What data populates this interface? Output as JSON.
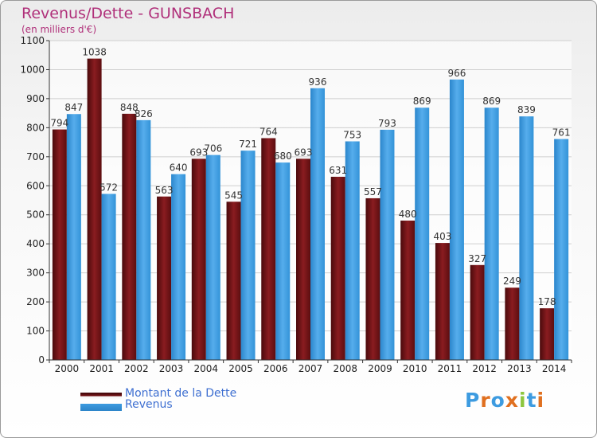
{
  "chart_data": {
    "type": "bar",
    "title": "Revenus/Dette - GUNSBACH",
    "subtitle": "(en milliers d'€)",
    "categories": [
      "2000",
      "2001",
      "2002",
      "2003",
      "2004",
      "2005",
      "2006",
      "2007",
      "2008",
      "2009",
      "2010",
      "2011",
      "2012",
      "2013",
      "2014"
    ],
    "series": [
      {
        "name": "Montant de la Dette",
        "values": [
          794,
          1038,
          848,
          563,
          693,
          545,
          764,
          693,
          631,
          557,
          480,
          403,
          327,
          249,
          178
        ]
      },
      {
        "name": "Revenus",
        "values": [
          847,
          572,
          826,
          640,
          706,
          721,
          680,
          936,
          753,
          793,
          869,
          966,
          869,
          839,
          761
        ]
      }
    ],
    "ylim": [
      0,
      1100
    ],
    "yticks": [
      0,
      100,
      200,
      300,
      400,
      500,
      600,
      700,
      800,
      900,
      1000,
      1100
    ],
    "grid": true,
    "legend_position": "bottom-left",
    "colors": {
      "dette": "#7a1418",
      "revenus": "#3d9be0"
    }
  },
  "logo": {
    "text": "Proxiti",
    "colors": [
      "#3d9be0",
      "#e07020",
      "#3d9be0",
      "#e07020",
      "#8dc63f",
      "#3d9be0",
      "#e07020"
    ]
  }
}
